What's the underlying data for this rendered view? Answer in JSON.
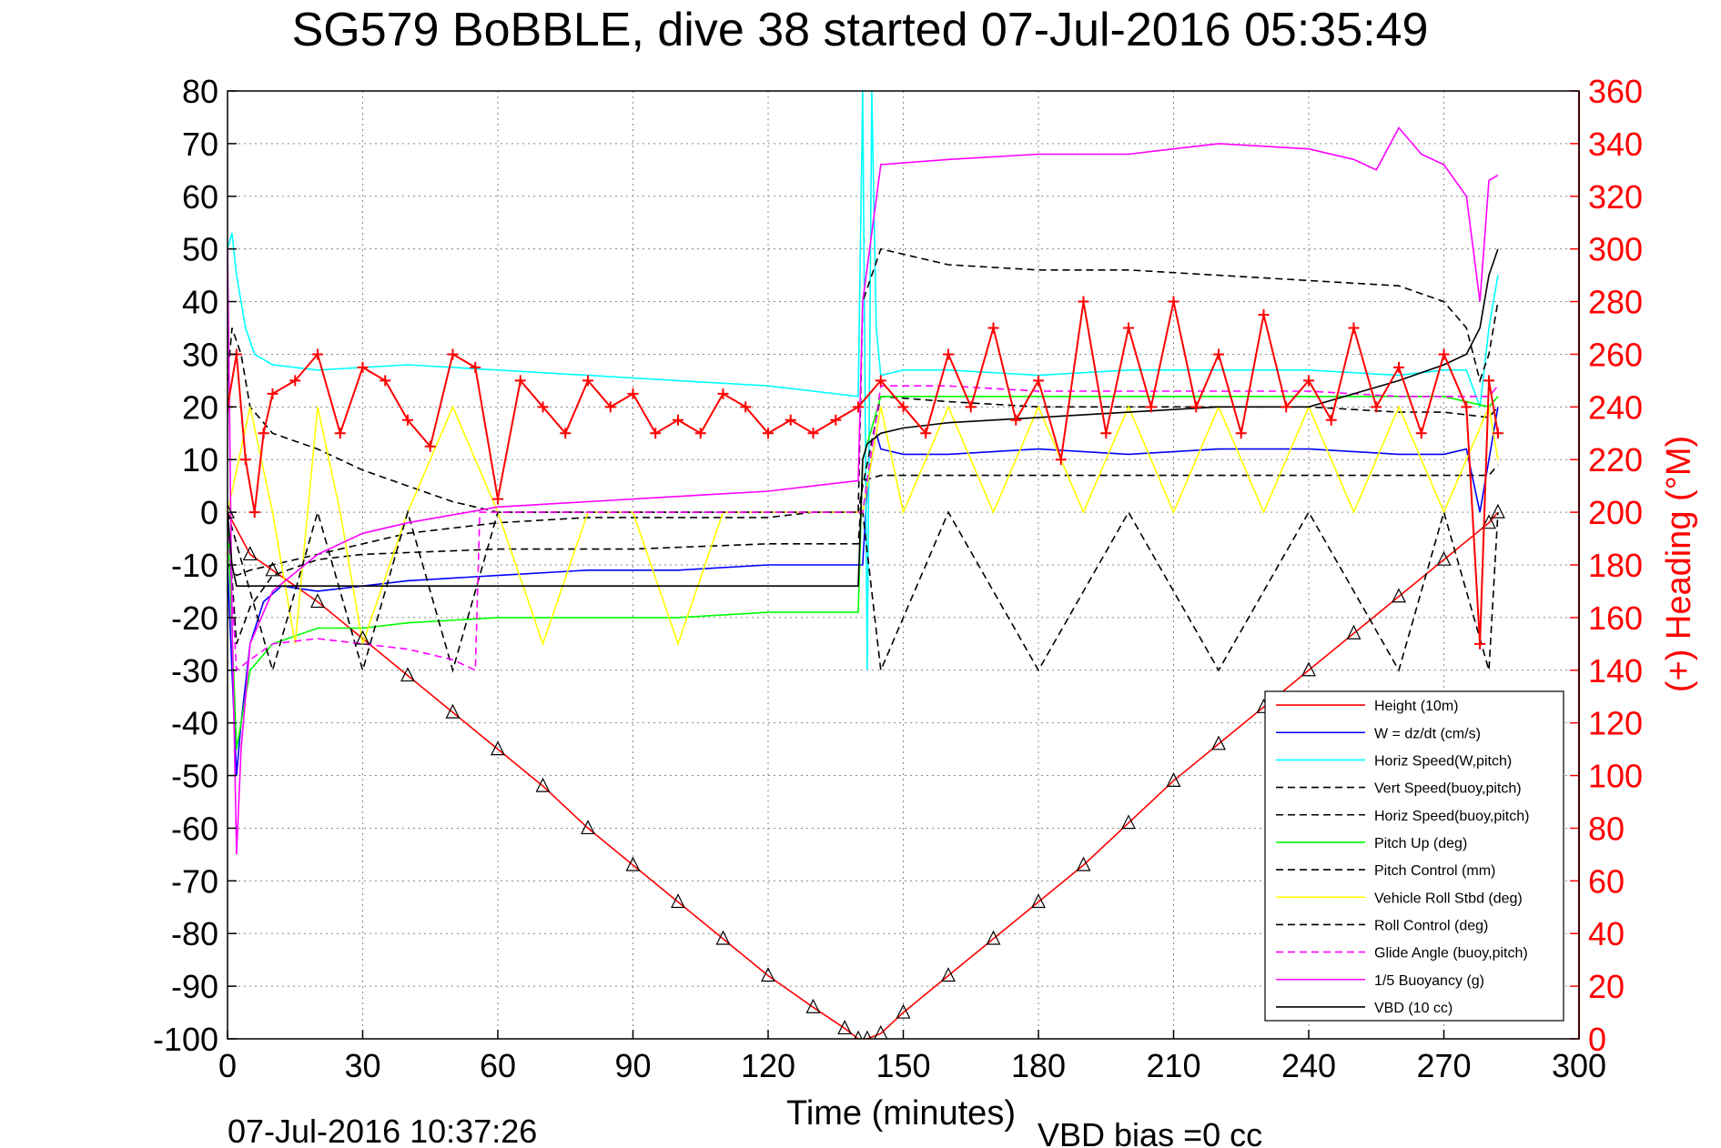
{
  "chart_data": {
    "type": "line",
    "title": "SG579 BoBBLE, dive 38 started 07-Jul-2016 05:35:49",
    "xlabel": "Time (minutes)",
    "ylabel": "",
    "y2label": "(+) Heading (°M)",
    "xlim": [
      0,
      300
    ],
    "ylim": [
      -100,
      80
    ],
    "y2lim": [
      0,
      360
    ],
    "grid": true,
    "legend_position": "bottom-right",
    "footer_left": "07-Jul-2016 10:37:26",
    "footer_right": "VBD bias =0 cc",
    "x_ticks": [
      "0",
      "30",
      "60",
      "90",
      "120",
      "150",
      "180",
      "210",
      "240",
      "270",
      "300"
    ],
    "y_ticks": [
      "80",
      "70",
      "60",
      "50",
      "40",
      "30",
      "20",
      "10",
      "0",
      "-10",
      "-20",
      "-30",
      "-40",
      "-50",
      "-60",
      "-70",
      "-80",
      "-90",
      "-100"
    ],
    "y2_ticks": [
      "360",
      "340",
      "320",
      "300",
      "280",
      "260",
      "240",
      "220",
      "200",
      "180",
      "160",
      "140",
      "120",
      "100",
      "80",
      "60",
      "40",
      "20",
      "0"
    ],
    "colors": {
      "height": "#ff0000",
      "w": "#0000ff",
      "hspeed": "#00ffff",
      "pitch": "#00ff00",
      "roll": "#ffff00",
      "glide": "#ff00ff",
      "buoyancy": "#ff00ff",
      "vbd": "#000000",
      "heading": "#ff0000",
      "axis_right": "#ff0000"
    },
    "series": [
      {
        "key": "height",
        "name": "Height (10m)",
        "style": "solid",
        "x": [
          0,
          5,
          10,
          20,
          30,
          40,
          50,
          60,
          70,
          80,
          90,
          100,
          110,
          120,
          130,
          137,
          140,
          142,
          145,
          150,
          160,
          170,
          180,
          190,
          200,
          210,
          220,
          230,
          240,
          250,
          260,
          270,
          280,
          282
        ],
        "y": [
          0,
          -8,
          -11,
          -17,
          -24,
          -31,
          -38,
          -45,
          -52,
          -60,
          -67,
          -74,
          -81,
          -88,
          -94,
          -98,
          -100,
          -100,
          -99,
          -95,
          -88,
          -81,
          -74,
          -67,
          -59,
          -51,
          -44,
          -37,
          -30,
          -23,
          -16,
          -9,
          -2,
          0
        ]
      },
      {
        "key": "w",
        "name": "W = dz/dt (cm/s)",
        "style": "solid",
        "x": [
          0,
          1,
          2,
          3,
          5,
          8,
          12,
          20,
          30,
          40,
          60,
          80,
          100,
          120,
          130,
          139,
          141,
          142,
          144,
          145,
          150,
          160,
          180,
          200,
          220,
          240,
          260,
          270,
          275,
          278,
          280,
          282
        ],
        "y": [
          -10,
          -30,
          -50,
          -40,
          -25,
          -17,
          -14,
          -15,
          -14,
          -13,
          -12,
          -11,
          -11,
          -10,
          -10,
          -10,
          -10,
          5,
          15,
          12,
          11,
          11,
          12,
          11,
          12,
          12,
          11,
          11,
          12,
          0,
          10,
          20
        ]
      },
      {
        "key": "hspeed",
        "name": "Horiz Speed(W,pitch)",
        "style": "solid",
        "x": [
          0,
          1,
          2,
          3,
          4,
          6,
          10,
          20,
          40,
          60,
          80,
          100,
          120,
          130,
          140,
          141,
          142,
          143,
          144,
          145,
          150,
          160,
          180,
          200,
          220,
          240,
          260,
          270,
          275,
          278,
          280,
          282
        ],
        "y": [
          50,
          53,
          45,
          40,
          35,
          30,
          28,
          27,
          28,
          27,
          26,
          25,
          24,
          23,
          22,
          80,
          -30,
          80,
          35,
          26,
          27,
          27,
          26,
          27,
          27,
          27,
          26,
          27,
          27,
          20,
          35,
          45
        ]
      },
      {
        "key": "vspeed_buoy",
        "name": "Vert Speed(buoy,pitch)",
        "style": "dashed",
        "x": [
          0,
          2,
          5,
          10,
          20,
          40,
          60,
          80,
          100,
          120,
          130,
          140,
          141,
          145,
          160,
          180,
          200,
          220,
          240,
          260,
          270,
          280,
          282
        ],
        "y": [
          -10,
          -12,
          -11,
          -10,
          -8,
          -4,
          -2,
          -1,
          -1,
          -1,
          0,
          0,
          5,
          22,
          21,
          20,
          20,
          20,
          20,
          19,
          19,
          18,
          20
        ]
      },
      {
        "key": "hspeed_buoy",
        "name": "Horiz Speed(buoy,pitch)",
        "style": "dashed",
        "x": [
          0,
          1,
          3,
          5,
          10,
          20,
          30,
          40,
          50,
          55,
          60,
          140,
          141,
          145,
          160,
          180,
          200,
          220,
          240,
          260,
          270,
          275,
          278,
          280,
          282
        ],
        "y": [
          25,
          35,
          30,
          20,
          15,
          12,
          8,
          5,
          2,
          1,
          0,
          0,
          40,
          50,
          47,
          46,
          46,
          45,
          44,
          43,
          40,
          35,
          25,
          30,
          40
        ]
      },
      {
        "key": "pitch",
        "name": "Pitch Up (deg)",
        "style": "solid",
        "x": [
          0,
          2,
          5,
          10,
          20,
          30,
          40,
          60,
          80,
          100,
          120,
          130,
          140,
          141,
          145,
          160,
          180,
          200,
          220,
          240,
          260,
          270,
          280,
          282
        ],
        "y": [
          0,
          -45,
          -30,
          -25,
          -22,
          -22,
          -21,
          -20,
          -20,
          -20,
          -19,
          -19,
          -19,
          10,
          22,
          22,
          22,
          22,
          22,
          22,
          22,
          22,
          20,
          22
        ]
      },
      {
        "key": "pitch_ctl",
        "name": "Pitch Control (mm)",
        "style": "dashed",
        "x": [
          0,
          2,
          5,
          10,
          20,
          30,
          60,
          90,
          120,
          140,
          141,
          145,
          160,
          180,
          200,
          220,
          240,
          260,
          270,
          280,
          282
        ],
        "y": [
          0,
          -25,
          -18,
          -12,
          -9,
          -8,
          -7,
          -7,
          -6,
          -6,
          6,
          7,
          7,
          7,
          7,
          7,
          7,
          7,
          7,
          7,
          9
        ]
      },
      {
        "key": "roll",
        "name": "Vehicle Roll Stbd (deg)",
        "style": "solid",
        "x": [
          0,
          5,
          10,
          15,
          20,
          25,
          30,
          40,
          50,
          60,
          70,
          80,
          90,
          100,
          110,
          120,
          130,
          140,
          141,
          145,
          150,
          160,
          170,
          180,
          190,
          200,
          210,
          220,
          230,
          240,
          250,
          260,
          270,
          280,
          282
        ],
        "y": [
          0,
          20,
          0,
          -25,
          20,
          0,
          -25,
          0,
          20,
          0,
          -25,
          0,
          0,
          -25,
          0,
          0,
          0,
          0,
          0,
          20,
          0,
          20,
          0,
          20,
          0,
          20,
          0,
          20,
          0,
          20,
          0,
          20,
          0,
          20,
          10
        ]
      },
      {
        "key": "roll_ctl",
        "name": "Roll Control (deg)",
        "style": "dashed",
        "x": [
          0,
          10,
          20,
          30,
          40,
          50,
          60,
          80,
          100,
          120,
          140,
          141,
          145,
          160,
          180,
          200,
          220,
          240,
          260,
          270,
          280,
          282
        ],
        "y": [
          0,
          -30,
          0,
          -30,
          0,
          -30,
          0,
          0,
          0,
          0,
          0,
          0,
          -30,
          0,
          -30,
          0,
          -30,
          0,
          -30,
          0,
          -30,
          0
        ]
      },
      {
        "key": "glide",
        "name": "Glide Angle (buoy,pitch)",
        "style": "dashed",
        "x": [
          0,
          2,
          5,
          10,
          20,
          30,
          40,
          50,
          55,
          56,
          140,
          141,
          145,
          160,
          180,
          200,
          220,
          240,
          260,
          270,
          280,
          282
        ],
        "y": [
          0,
          -30,
          -28,
          -25,
          -24,
          -25,
          -26,
          -28,
          -30,
          0,
          0,
          0,
          24,
          24,
          23,
          23,
          23,
          23,
          22,
          22,
          22,
          24
        ]
      },
      {
        "key": "buoyancy",
        "name": "1/5 Buoyancy (g)",
        "style": "solid",
        "x": [
          0,
          1,
          2,
          3,
          5,
          10,
          20,
          30,
          40,
          60,
          80,
          100,
          120,
          140,
          141,
          145,
          160,
          180,
          200,
          220,
          240,
          250,
          255,
          260,
          265,
          270,
          275,
          278,
          280,
          282
        ],
        "y": [
          50,
          -20,
          -65,
          -45,
          -25,
          -15,
          -8,
          -4,
          -2,
          1,
          2,
          3,
          4,
          6,
          40,
          66,
          67,
          68,
          68,
          70,
          69,
          67,
          65,
          73,
          68,
          66,
          60,
          40,
          63,
          64
        ]
      },
      {
        "key": "vbd",
        "name": "VBD (10 cc)",
        "style": "solid",
        "x": [
          0,
          1,
          2,
          10,
          20,
          40,
          60,
          80,
          100,
          120,
          140,
          141,
          142,
          145,
          150,
          160,
          180,
          200,
          220,
          240,
          260,
          270,
          275,
          278,
          280,
          282
        ],
        "y": [
          0,
          -10,
          -14,
          -14,
          -14,
          -14,
          -14,
          -14,
          -14,
          -14,
          -14,
          10,
          13,
          15,
          16,
          17,
          18,
          19,
          20,
          20,
          25,
          28,
          30,
          35,
          45,
          50
        ]
      }
    ],
    "heading": {
      "name": "(+) Heading (°M)",
      "x": [
        0,
        2,
        4,
        6,
        8,
        10,
        15,
        20,
        25,
        30,
        35,
        40,
        45,
        50,
        55,
        60,
        65,
        70,
        75,
        80,
        85,
        90,
        95,
        100,
        105,
        110,
        115,
        120,
        125,
        130,
        135,
        140,
        145,
        150,
        155,
        160,
        165,
        170,
        175,
        180,
        185,
        190,
        195,
        200,
        205,
        210,
        215,
        220,
        225,
        230,
        235,
        240,
        245,
        250,
        255,
        260,
        265,
        270,
        275,
        278,
        280,
        282
      ],
      "y": [
        240,
        260,
        220,
        200,
        230,
        245,
        250,
        260,
        230,
        255,
        250,
        235,
        225,
        260,
        255,
        205,
        250,
        240,
        230,
        250,
        240,
        245,
        230,
        235,
        230,
        245,
        240,
        230,
        235,
        230,
        235,
        240,
        250,
        240,
        230,
        260,
        240,
        270,
        235,
        250,
        220,
        280,
        230,
        270,
        240,
        280,
        240,
        260,
        230,
        275,
        240,
        250,
        235,
        270,
        240,
        255,
        230,
        260,
        240,
        150,
        250,
        230
      ]
    }
  }
}
